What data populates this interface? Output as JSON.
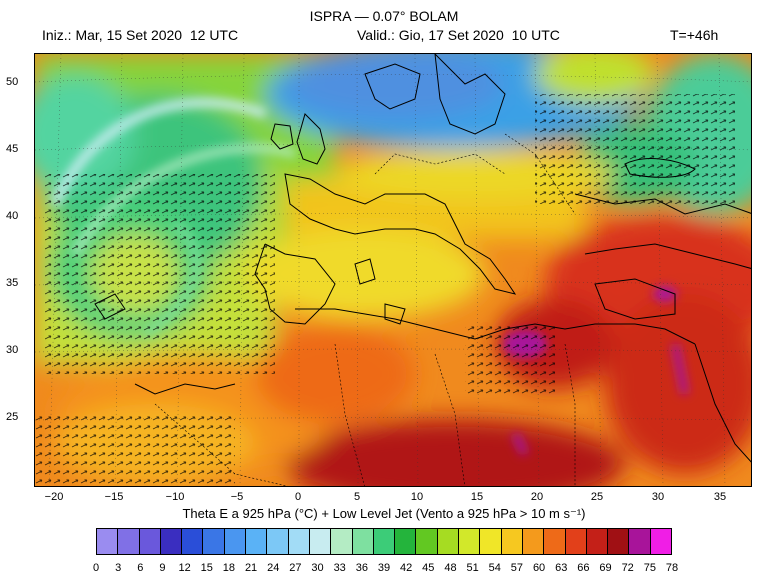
{
  "header": {
    "title": "ISPRA — 0.07° BOLAM",
    "init": "Iniz.: Mar, 15 Set 2020  12 UTC",
    "valid": "Valid.: Gio, 17 Set 2020  10 UTC",
    "lead": "T=+46h"
  },
  "axes": {
    "lat_labels": [
      "50",
      "45",
      "40",
      "35",
      "30",
      "25"
    ],
    "lon_labels": [
      "−20",
      "−15",
      "−10",
      "−5",
      "0",
      "5",
      "10",
      "15",
      "20",
      "25",
      "30",
      "35"
    ]
  },
  "caption": {
    "text": "Theta E a 925 hPa (°C) + Low Level Jet (Vento a 925 hPa > 10 m s⁻¹)"
  },
  "colorbar": {
    "labels": [
      "0",
      "3",
      "6",
      "9",
      "12",
      "15",
      "18",
      "21",
      "24",
      "27",
      "30",
      "33",
      "36",
      "39",
      "42",
      "45",
      "48",
      "51",
      "54",
      "57",
      "60",
      "63",
      "66",
      "69",
      "72",
      "75",
      "78"
    ],
    "colors": [
      "#9a8cf0",
      "#8070e6",
      "#6a58dc",
      "#3a2ec0",
      "#2a4ed8",
      "#3a76e6",
      "#4a96f0",
      "#5ab2f6",
      "#7cc8f6",
      "#a2dcf6",
      "#c8ecf0",
      "#b4ecc4",
      "#7ee0a0",
      "#3ccc78",
      "#24b43c",
      "#62c822",
      "#a6dc22",
      "#d2e82a",
      "#f0e628",
      "#f6c820",
      "#f49a1c",
      "#ee6a18",
      "#e2401a",
      "#c42018",
      "#a01014",
      "#a8149a",
      "#f01ee6"
    ]
  }
}
